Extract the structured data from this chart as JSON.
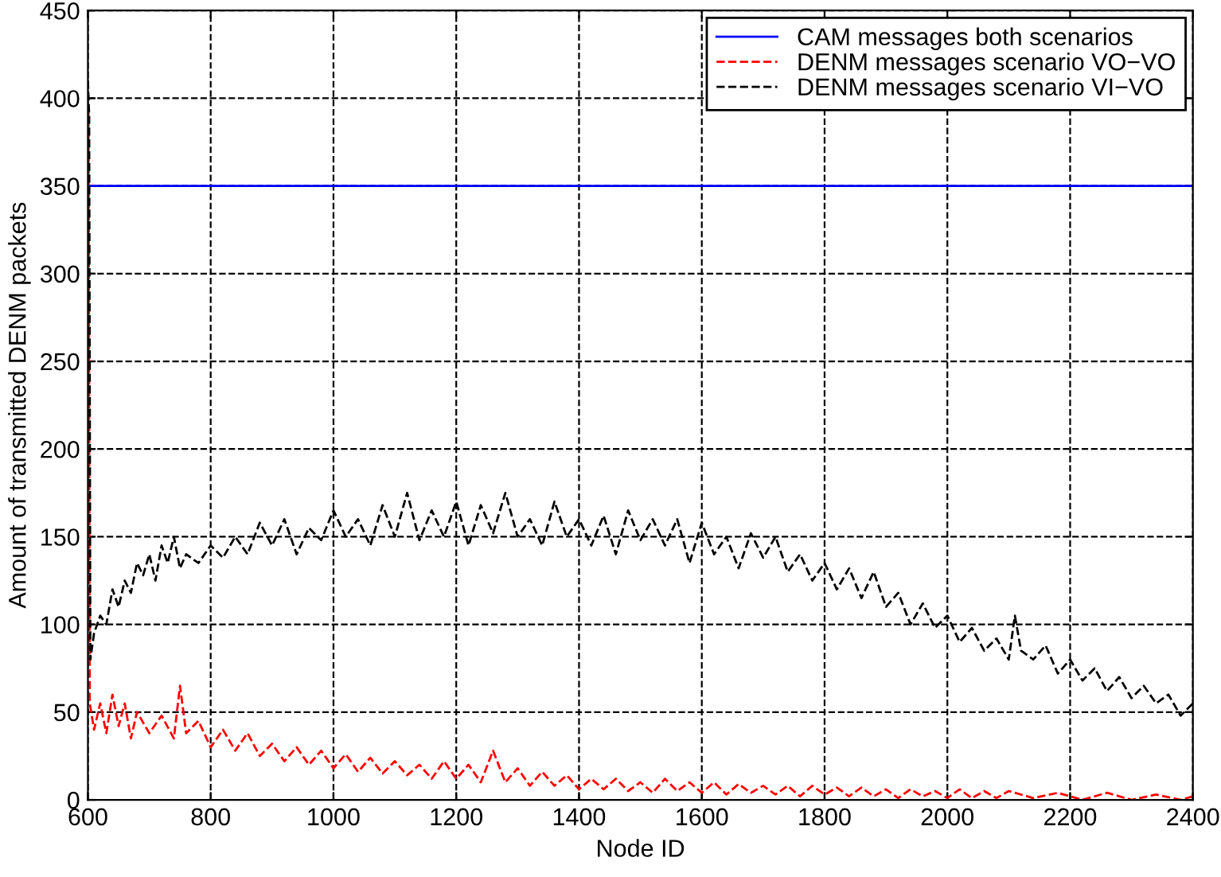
{
  "chart_data": {
    "type": "line",
    "xlabel": "Node ID",
    "ylabel": "Amount of transmitted DENM packets",
    "xlim": [
      600,
      2400
    ],
    "xticks": [
      600,
      800,
      1000,
      1200,
      1400,
      1600,
      1800,
      2000,
      2200,
      2400
    ],
    "ylim": [
      0,
      450
    ],
    "yticks": [
      0,
      50,
      100,
      150,
      200,
      250,
      300,
      350,
      400,
      450
    ],
    "grid": true,
    "legend": "top right",
    "series": [
      {
        "name": "CAM messages both scenarios",
        "color": "#0000ff",
        "line_style": "solid",
        "x": [
          600,
          2400
        ],
        "values": [
          350,
          350
        ]
      },
      {
        "name": "DENM messages scenario VO−VO",
        "color": "#ff0000",
        "line_style": "dashed",
        "x": [
          601,
          603,
          610,
          620,
          630,
          640,
          650,
          660,
          670,
          680,
          700,
          720,
          740,
          750,
          760,
          780,
          800,
          820,
          840,
          860,
          880,
          900,
          920,
          940,
          960,
          980,
          1000,
          1020,
          1040,
          1060,
          1080,
          1100,
          1120,
          1140,
          1160,
          1180,
          1200,
          1220,
          1240,
          1260,
          1280,
          1300,
          1320,
          1340,
          1360,
          1380,
          1400,
          1420,
          1440,
          1460,
          1480,
          1500,
          1520,
          1540,
          1560,
          1580,
          1600,
          1620,
          1640,
          1660,
          1680,
          1700,
          1720,
          1740,
          1760,
          1780,
          1800,
          1820,
          1840,
          1860,
          1880,
          1900,
          1920,
          1940,
          1960,
          1980,
          2000,
          2020,
          2040,
          2060,
          2080,
          2100,
          2140,
          2180,
          2220,
          2260,
          2300,
          2340,
          2380,
          2400
        ],
        "values": [
          395,
          55,
          40,
          55,
          38,
          60,
          42,
          55,
          35,
          50,
          38,
          48,
          35,
          65,
          38,
          45,
          30,
          40,
          28,
          38,
          25,
          32,
          22,
          30,
          20,
          28,
          18,
          26,
          16,
          24,
          15,
          22,
          14,
          20,
          12,
          22,
          12,
          20,
          10,
          28,
          10,
          18,
          8,
          16,
          8,
          14,
          6,
          12,
          6,
          12,
          5,
          10,
          4,
          12,
          5,
          10,
          4,
          10,
          3,
          9,
          4,
          8,
          3,
          8,
          2,
          8,
          3,
          7,
          2,
          7,
          2,
          6,
          1,
          6,
          2,
          5,
          1,
          6,
          1,
          5,
          1,
          5,
          1,
          4,
          0,
          4,
          0,
          3,
          0,
          2
        ]
      },
      {
        "name": "DENM messages scenario VI−VO",
        "color": "#000000",
        "line_style": "dashed",
        "x": [
          600,
          602,
          604,
          610,
          620,
          630,
          640,
          650,
          660,
          670,
          680,
          690,
          700,
          710,
          720,
          730,
          740,
          750,
          760,
          780,
          800,
          820,
          840,
          860,
          880,
          900,
          920,
          940,
          960,
          980,
          1000,
          1020,
          1040,
          1060,
          1080,
          1100,
          1120,
          1140,
          1160,
          1180,
          1200,
          1220,
          1240,
          1260,
          1280,
          1300,
          1320,
          1340,
          1360,
          1380,
          1400,
          1420,
          1440,
          1460,
          1480,
          1500,
          1520,
          1540,
          1560,
          1580,
          1600,
          1620,
          1640,
          1660,
          1680,
          1700,
          1720,
          1740,
          1760,
          1780,
          1800,
          1820,
          1840,
          1860,
          1880,
          1900,
          1920,
          1940,
          1960,
          1980,
          2000,
          2020,
          2040,
          2060,
          2080,
          2100,
          2110,
          2120,
          2140,
          2160,
          2180,
          2200,
          2220,
          2240,
          2260,
          2280,
          2300,
          2320,
          2340,
          2360,
          2380,
          2400
        ],
        "values": [
          410,
          390,
          80,
          95,
          105,
          100,
          120,
          110,
          125,
          118,
          135,
          128,
          140,
          125,
          145,
          135,
          150,
          132,
          140,
          135,
          145,
          138,
          150,
          140,
          158,
          145,
          160,
          140,
          155,
          148,
          165,
          150,
          160,
          145,
          168,
          150,
          175,
          148,
          165,
          150,
          170,
          145,
          168,
          152,
          175,
          150,
          160,
          145,
          170,
          150,
          160,
          145,
          162,
          140,
          165,
          148,
          160,
          145,
          160,
          135,
          158,
          140,
          150,
          132,
          152,
          138,
          150,
          130,
          140,
          125,
          135,
          120,
          132,
          115,
          130,
          110,
          118,
          100,
          112,
          98,
          105,
          90,
          98,
          85,
          92,
          80,
          105,
          85,
          80,
          88,
          72,
          80,
          68,
          75,
          62,
          70,
          58,
          65,
          55,
          60,
          48,
          55
        ]
      }
    ]
  }
}
